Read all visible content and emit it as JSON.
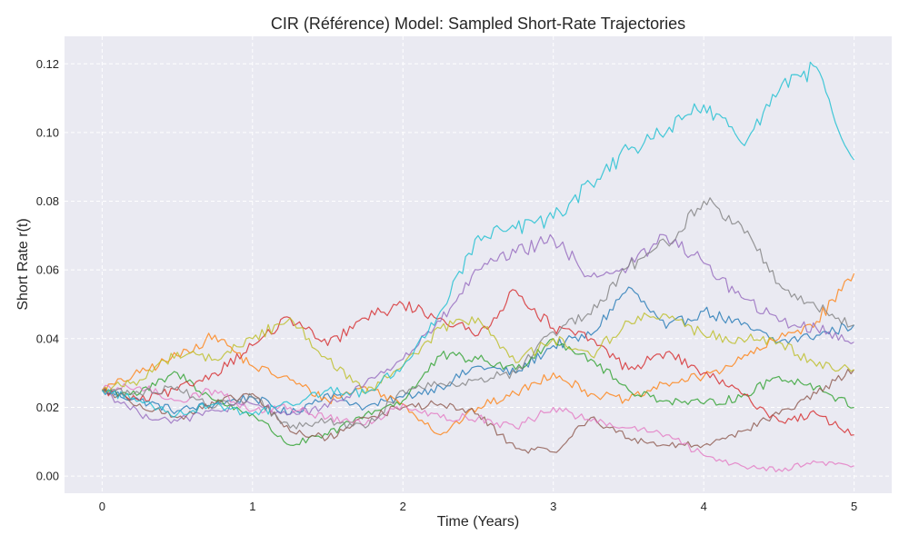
{
  "chart_data": {
    "type": "line",
    "title": "CIR (Référence) Model: Sampled Short-Rate Trajectories",
    "xlabel": "Time (Years)",
    "ylabel": "Short Rate r(t)",
    "xlim": [
      -0.25,
      5.25
    ],
    "ylim": [
      -0.005,
      0.128
    ],
    "xticks": [
      0,
      1,
      2,
      3,
      4,
      5
    ],
    "xtick_labels": [
      "0",
      "1",
      "2",
      "3",
      "4",
      "5"
    ],
    "yticks": [
      0.0,
      0.02,
      0.04,
      0.06,
      0.08,
      0.1,
      0.12
    ],
    "ytick_labels": [
      "0.00",
      "0.02",
      "0.04",
      "0.06",
      "0.08",
      "0.10",
      "0.12"
    ],
    "grid": true,
    "x": [
      0,
      0.25,
      0.5,
      0.75,
      1.0,
      1.25,
      1.5,
      1.75,
      2.0,
      2.25,
      2.5,
      2.75,
      3.0,
      3.25,
      3.5,
      3.75,
      4.0,
      4.25,
      4.5,
      4.75,
      5.0
    ],
    "series": [
      {
        "color": "#1f77b4",
        "values": [
          0.025,
          0.022,
          0.019,
          0.021,
          0.023,
          0.018,
          0.024,
          0.02,
          0.023,
          0.026,
          0.032,
          0.03,
          0.038,
          0.041,
          0.055,
          0.043,
          0.048,
          0.044,
          0.039,
          0.041,
          0.044
        ]
      },
      {
        "color": "#ff7f0e",
        "values": [
          0.025,
          0.03,
          0.035,
          0.041,
          0.032,
          0.028,
          0.022,
          0.026,
          0.021,
          0.012,
          0.02,
          0.024,
          0.03,
          0.024,
          0.022,
          0.027,
          0.029,
          0.034,
          0.04,
          0.045,
          0.059
        ]
      },
      {
        "color": "#2ca02c",
        "values": [
          0.025,
          0.024,
          0.03,
          0.022,
          0.018,
          0.009,
          0.012,
          0.018,
          0.022,
          0.035,
          0.034,
          0.031,
          0.04,
          0.034,
          0.025,
          0.022,
          0.021,
          0.023,
          0.029,
          0.026,
          0.02
        ]
      },
      {
        "color": "#d62728",
        "values": [
          0.025,
          0.022,
          0.025,
          0.03,
          0.038,
          0.046,
          0.038,
          0.046,
          0.05,
          0.046,
          0.041,
          0.054,
          0.043,
          0.04,
          0.031,
          0.036,
          0.03,
          0.024,
          0.016,
          0.018,
          0.012
        ]
      },
      {
        "color": "#9467bd",
        "values": [
          0.025,
          0.018,
          0.016,
          0.019,
          0.021,
          0.018,
          0.02,
          0.027,
          0.034,
          0.045,
          0.06,
          0.065,
          0.069,
          0.058,
          0.061,
          0.07,
          0.062,
          0.052,
          0.045,
          0.043,
          0.039
        ]
      },
      {
        "color": "#8c564b",
        "values": [
          0.025,
          0.021,
          0.017,
          0.021,
          0.024,
          0.013,
          0.011,
          0.017,
          0.02,
          0.021,
          0.018,
          0.008,
          0.007,
          0.017,
          0.011,
          0.009,
          0.009,
          0.013,
          0.018,
          0.024,
          0.031
        ]
      },
      {
        "color": "#e377c2",
        "values": [
          0.025,
          0.026,
          0.022,
          0.025,
          0.019,
          0.02,
          0.017,
          0.015,
          0.021,
          0.017,
          0.017,
          0.014,
          0.02,
          0.016,
          0.014,
          0.012,
          0.006,
          0.003,
          0.002,
          0.004,
          0.003
        ]
      },
      {
        "color": "#7f7f7f",
        "values": [
          0.025,
          0.024,
          0.026,
          0.02,
          0.023,
          0.014,
          0.016,
          0.014,
          0.025,
          0.027,
          0.028,
          0.03,
          0.042,
          0.047,
          0.061,
          0.068,
          0.08,
          0.073,
          0.056,
          0.049,
          0.044
        ]
      },
      {
        "color": "#bcbd22",
        "values": [
          0.025,
          0.028,
          0.036,
          0.034,
          0.04,
          0.046,
          0.034,
          0.024,
          0.032,
          0.043,
          0.046,
          0.033,
          0.04,
          0.035,
          0.045,
          0.047,
          0.041,
          0.04,
          0.039,
          0.032,
          0.031
        ]
      },
      {
        "color": "#17becf",
        "values": [
          0.025,
          0.022,
          0.018,
          0.021,
          0.018,
          0.021,
          0.025,
          0.024,
          0.032,
          0.048,
          0.07,
          0.072,
          0.075,
          0.085,
          0.095,
          0.1,
          0.108,
          0.097,
          0.112,
          0.119,
          0.092
        ]
      }
    ]
  }
}
